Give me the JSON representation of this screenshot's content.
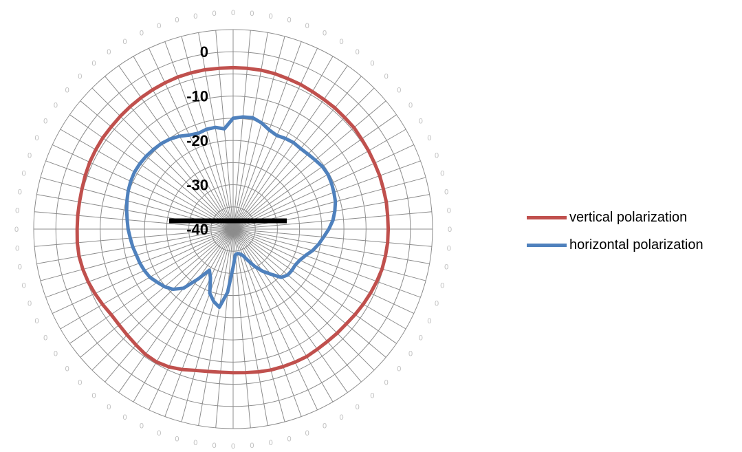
{
  "chart_data": {
    "type": "radar",
    "radial_ticks": [
      "0",
      "-10",
      "-20",
      "-30",
      "-40"
    ],
    "rlim": [
      -40,
      5
    ],
    "angle_label": "0",
    "angle_count": 72,
    "grid": true,
    "legend_position": "right",
    "series": [
      {
        "name": "vertical polarization",
        "color": "#c0504d",
        "values": [
          -3.6,
          -3.6,
          -3.6,
          -3.7,
          -3.9,
          -4.0,
          -4.2,
          -4.3,
          -4.3,
          -4.4,
          -4.4,
          -4.6,
          -4.7,
          -4.8,
          -4.8,
          -4.9,
          -4.9,
          -5.0,
          -5.0,
          -5.0,
          -5.1,
          -5.2,
          -5.5,
          -5.8,
          -6.1,
          -6.4,
          -6.7,
          -6.8,
          -6.9,
          -6.9,
          -6.8,
          -6.9,
          -7.0,
          -7.1,
          -7.3,
          -7.5,
          -7.6,
          -7.6,
          -7.4,
          -7.0,
          -6.3,
          -5.7,
          -5.4,
          -5.5,
          -5.9,
          -6.2,
          -6.4,
          -6.4,
          -6.0,
          -5.6,
          -5.2,
          -4.9,
          -4.7,
          -4.7,
          -4.8,
          -4.8,
          -4.8,
          -4.7,
          -4.5,
          -4.3,
          -4.2,
          -4.1,
          -4.1,
          -4.0,
          -3.9,
          -3.8,
          -3.7,
          -3.6,
          -3.5,
          -3.5,
          -3.5,
          -3.6
        ]
      },
      {
        "name": "horizontal polarization",
        "color": "#4f81bd",
        "values": [
          -15.0,
          -14.6,
          -14.5,
          -15.2,
          -16.2,
          -16.7,
          -16.4,
          -16.2,
          -16.3,
          -16.1,
          -15.8,
          -15.4,
          -15.3,
          -15.5,
          -15.8,
          -16.1,
          -16.7,
          -17.4,
          -18.4,
          -19.5,
          -20.4,
          -21.4,
          -22.6,
          -23.4,
          -23.8,
          -23.8,
          -23.9,
          -24.6,
          -26.7,
          -28.4,
          -30.3,
          -32.3,
          -33.7,
          -34.2,
          -34.4,
          -34.2,
          -31.4,
          -25.7,
          -22.1,
          -23.1,
          -24.6,
          -27.9,
          -29.3,
          -26.3,
          -22.6,
          -20.8,
          -19.8,
          -19.1,
          -18.3,
          -17.9,
          -17.6,
          -17.4,
          -17.0,
          -16.7,
          -16.3,
          -16.0,
          -15.6,
          -15.2,
          -14.8,
          -14.5,
          -14.3,
          -14.3,
          -14.4,
          -14.6,
          -14.8,
          -15.2,
          -15.8,
          -16.6,
          -17.0,
          -16.7,
          -16.7,
          -17.3
        ]
      }
    ]
  }
}
